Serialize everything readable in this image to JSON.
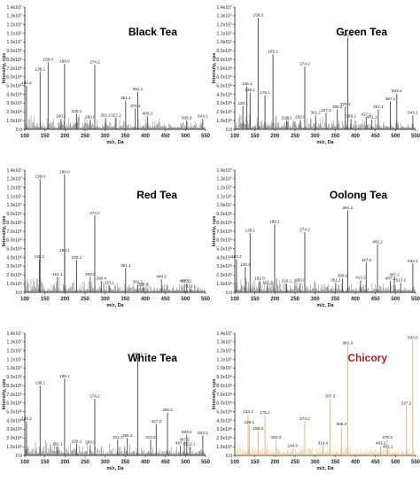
{
  "chart_data": [
    {
      "type": "line",
      "title": "Black Tea",
      "title_color": "#000000",
      "line_color": "#444444",
      "xlabel": "m/z, Da",
      "ylabel": "Intensity, cps",
      "xlim": [
        100,
        550
      ],
      "x_ticks": [
        "100",
        "150",
        "200",
        "250",
        "300",
        "350",
        "400",
        "450",
        "500",
        "550"
      ],
      "ylim": [
        0,
        14000000
      ],
      "y_ticks": [
        "0.0",
        "1.0x10⁶",
        "2.0x10⁶",
        "3.0x10⁶",
        "4.0x10⁶",
        "5.0x10⁶",
        "6.0x10⁶",
        "7.0x10⁶",
        "8.0x10⁶",
        "9.0x10⁶",
        "1.0x10⁷",
        "1.1x10⁷",
        "1.2x10⁷",
        "1.3x10⁷",
        "1.4x10⁷"
      ],
      "peaks": [
        {
          "x": 104.2,
          "y": 5000000,
          "label": "104.2"
        },
        {
          "x": 138.1,
          "y": 6600000,
          "label": "138.1"
        },
        {
          "x": 158.0,
          "y": 7700000,
          "label": "158.0"
        },
        {
          "x": 190.1,
          "y": 1200000,
          "label": "190.1"
        },
        {
          "x": 199.0,
          "y": 7500000,
          "label": "199.0"
        },
        {
          "x": 229.1,
          "y": 1800000,
          "label": "229.1"
        },
        {
          "x": 263.0,
          "y": 1100000,
          "label": "263.0"
        },
        {
          "x": 274.2,
          "y": 7400000,
          "label": "274.2"
        },
        {
          "x": 301.2,
          "y": 1300000,
          "label": "301.2"
        },
        {
          "x": 327.2,
          "y": 1300000,
          "label": "327.2"
        },
        {
          "x": 351.1,
          "y": 3300000,
          "label": "351.1"
        },
        {
          "x": 375.1,
          "y": 2400000,
          "label": "375.1"
        },
        {
          "x": 381.1,
          "y": 4300000,
          "label": "381.1"
        },
        {
          "x": 405.2,
          "y": 1500000,
          "label": "405.2"
        },
        {
          "x": 503.0,
          "y": 1000000,
          "label": "503.0"
        },
        {
          "x": 543.1,
          "y": 1200000,
          "label": "543.1"
        }
      ]
    },
    {
      "type": "line",
      "title": "Green Tea",
      "title_color": "#000000",
      "line_color": "#444444",
      "xlabel": "m/z, Da",
      "ylabel": "Intensity, cps",
      "xlim": [
        100,
        550
      ],
      "x_ticks": [
        "100",
        "150",
        "200",
        "250",
        "300",
        "350",
        "400",
        "450",
        "500",
        "550"
      ],
      "ylim": [
        0,
        14000000
      ],
      "y_ticks": [
        "0.0",
        "1.0x10⁶",
        "2.0x10⁶",
        "3.0x10⁶",
        "4.0x10⁶",
        "5.0x10⁶",
        "6.0x10⁶",
        "7.0x10⁶",
        "8.0x10⁶",
        "9.0x10⁶",
        "1.0x10⁷",
        "1.1x10⁷",
        "1.2x10⁷",
        "1.3x10⁷",
        "1.4x10⁷"
      ],
      "peaks": [
        {
          "x": 120.1,
          "y": 2700000,
          "label": "120.1"
        },
        {
          "x": 130.1,
          "y": 4900000,
          "label": "130.1"
        },
        {
          "x": 138.1,
          "y": 4200000,
          "label": "138.1"
        },
        {
          "x": 158.0,
          "y": 12800000,
          "label": "158.0"
        },
        {
          "x": 175.1,
          "y": 3900000,
          "label": "175.1"
        },
        {
          "x": 195.1,
          "y": 8600000,
          "label": "195.1"
        },
        {
          "x": 229.1,
          "y": 1000000,
          "label": "229.1"
        },
        {
          "x": 263.0,
          "y": 1100000,
          "label": "263.0"
        },
        {
          "x": 274.2,
          "y": 7200000,
          "label": "274.2"
        },
        {
          "x": 301.2,
          "y": 1600000,
          "label": "301.2"
        },
        {
          "x": 327.2,
          "y": 1900000,
          "label": "327.2"
        },
        {
          "x": 355.2,
          "y": 2300000,
          "label": "355.2"
        },
        {
          "x": 375.1,
          "y": 2600000,
          "label": "375.1"
        },
        {
          "x": 381.1,
          "y": 10500000,
          "label": "381.1"
        },
        {
          "x": 389.2,
          "y": 1200000,
          "label": "389.2"
        },
        {
          "x": 427.1,
          "y": 1400000,
          "label": "427.1"
        },
        {
          "x": 441.1,
          "y": 1100000,
          "label": "441.1"
        },
        {
          "x": 457.1,
          "y": 2300000,
          "label": "457.1"
        },
        {
          "x": 487.1,
          "y": 3200000,
          "label": "487.1"
        },
        {
          "x": 503.2,
          "y": 4100000,
          "label": "503.2"
        },
        {
          "x": 543.1,
          "y": 1600000,
          "label": "543.1"
        }
      ]
    },
    {
      "type": "line",
      "title": "Red Tea",
      "title_color": "#000000",
      "line_color": "#444444",
      "xlabel": "m/z, Da",
      "ylabel": "Intensity, cps",
      "xlim": [
        100,
        550
      ],
      "x_ticks": [
        "100",
        "150",
        "200",
        "250",
        "300",
        "350",
        "400",
        "450",
        "500",
        "550"
      ],
      "ylim": [
        0,
        14000000
      ],
      "y_ticks": [
        "0.0",
        "1.0x10⁶",
        "2.0x10⁶",
        "3.0x10⁶",
        "4.0x10⁶",
        "5.0x10⁶",
        "6.0x10⁶",
        "7.0x10⁶",
        "8.0x10⁶",
        "9.0x10⁶",
        "1.0x10⁷",
        "1.1x10⁷",
        "1.2x10⁷",
        "1.3x10⁷",
        "1.4x10⁷"
      ],
      "peaks": [
        {
          "x": 136.1,
          "y": 3800000,
          "label": "136.1"
        },
        {
          "x": 138.0,
          "y": 13000000,
          "label": "138.0"
        },
        {
          "x": 181.1,
          "y": 1800000,
          "label": "181.1"
        },
        {
          "x": 199.0,
          "y": 13500000,
          "label": "199.0"
        },
        {
          "x": 199.1,
          "y": 4500000,
          "label": "199.1"
        },
        {
          "x": 229.1,
          "y": 3700000,
          "label": "229.1"
        },
        {
          "x": 263.0,
          "y": 1800000,
          "label": "263.0"
        },
        {
          "x": 274.2,
          "y": 8800000,
          "label": "274.2"
        },
        {
          "x": 290.4,
          "y": 1300000,
          "label": "290.4"
        },
        {
          "x": 310.1,
          "y": 800000,
          "label": "310.1"
        },
        {
          "x": 351.1,
          "y": 2800000,
          "label": "351.1"
        },
        {
          "x": 381.1,
          "y": 900000,
          "label": "381.1"
        },
        {
          "x": 395.0,
          "y": 600000,
          "label": "395.0"
        },
        {
          "x": 440.2,
          "y": 1500000,
          "label": "440.2"
        },
        {
          "x": 497.2,
          "y": 1000000,
          "label": "497.2"
        },
        {
          "x": 503.2,
          "y": 1000000,
          "label": "503.2"
        },
        {
          "x": 513.1,
          "y": 400000,
          "label": "513.1"
        }
      ]
    },
    {
      "type": "line",
      "title": "Oolong Tea",
      "title_color": "#000000",
      "line_color": "#444444",
      "xlabel": "m/z, Da",
      "ylabel": "Intensity, cps",
      "xlim": [
        100,
        550
      ],
      "x_ticks": [
        "100",
        "150",
        "200",
        "250",
        "300",
        "350",
        "400",
        "450",
        "500",
        "550"
      ],
      "ylim": [
        0,
        14000000
      ],
      "y_ticks": [
        "0.0",
        "1.0x10⁶",
        "2.0x10⁶",
        "3.0x10⁶",
        "4.0x10⁶",
        "5.0x10⁶",
        "6.0x10⁶",
        "7.0x10⁶",
        "8.0x10⁶",
        "9.0x10⁶",
        "1.0x10⁷",
        "1.1x10⁷",
        "1.2x10⁷",
        "1.3x10⁷",
        "1.4x10⁷"
      ],
      "peaks": [
        {
          "x": 104.2,
          "y": 3800000,
          "label": "104.2"
        },
        {
          "x": 126.1,
          "y": 2900000,
          "label": "126.1"
        },
        {
          "x": 138.1,
          "y": 6800000,
          "label": "138.1"
        },
        {
          "x": 162.0,
          "y": 1300000,
          "label": "162.0"
        },
        {
          "x": 181.1,
          "y": 800000,
          "label": "181.1"
        },
        {
          "x": 199.1,
          "y": 7800000,
          "label": "199.1"
        },
        {
          "x": 229.1,
          "y": 1000000,
          "label": "229.1"
        },
        {
          "x": 263.0,
          "y": 1100000,
          "label": "263.0"
        },
        {
          "x": 274.2,
          "y": 6900000,
          "label": "274.2"
        },
        {
          "x": 351.1,
          "y": 1100000,
          "label": "351.1"
        },
        {
          "x": 368.2,
          "y": 1600000,
          "label": "368.2"
        },
        {
          "x": 381.1,
          "y": 9400000,
          "label": "381.1"
        },
        {
          "x": 413.2,
          "y": 1400000,
          "label": "413.2"
        },
        {
          "x": 427.2,
          "y": 3400000,
          "label": "427.2"
        },
        {
          "x": 455.2,
          "y": 5500000,
          "label": "455.2"
        },
        {
          "x": 487.2,
          "y": 1300000,
          "label": "487.2"
        },
        {
          "x": 497.2,
          "y": 1700000,
          "label": "497.2"
        },
        {
          "x": 513.1,
          "y": 1100000,
          "label": "513.1"
        },
        {
          "x": 543.1,
          "y": 3300000,
          "label": "543.1"
        }
      ]
    },
    {
      "type": "line",
      "title": "White Tea",
      "title_color": "#000000",
      "line_color": "#444444",
      "xlabel": "m/z, Da",
      "ylabel": "Intensity, cps",
      "xlim": [
        100,
        550
      ],
      "x_ticks": [
        "100",
        "150",
        "200",
        "250",
        "300",
        "350",
        "400",
        "450",
        "500",
        "550"
      ],
      "ylim": [
        0,
        14000000
      ],
      "y_ticks": [
        "0.0",
        "1.0x10⁶",
        "2.0x10⁶",
        "3.0x10⁶",
        "4.0x10⁶",
        "5.0x10⁶",
        "6.0x10⁶",
        "7.0x10⁶",
        "8.0x10⁶",
        "9.0x10⁶",
        "1.0x10⁷",
        "1.1x10⁷",
        "1.2x10⁷",
        "1.3x10⁷",
        "1.4x10⁷"
      ],
      "peaks": [
        {
          "x": 104.2,
          "y": 3900000,
          "label": "104.2"
        },
        {
          "x": 138.1,
          "y": 8000000,
          "label": "138.1"
        },
        {
          "x": 181.1,
          "y": 1000000,
          "label": "181.1"
        },
        {
          "x": 199.1,
          "y": 8800000,
          "label": "199.1"
        },
        {
          "x": 229.1,
          "y": 1300000,
          "label": "229.1"
        },
        {
          "x": 263.0,
          "y": 1200000,
          "label": "263.0"
        },
        {
          "x": 274.2,
          "y": 6500000,
          "label": "274.2"
        },
        {
          "x": 331.1,
          "y": 1800000,
          "label": "331.1"
        },
        {
          "x": 355.2,
          "y": 2000000,
          "label": "355.2"
        },
        {
          "x": 381.1,
          "y": 11300000,
          "label": "381.1"
        },
        {
          "x": 413.2,
          "y": 1800000,
          "label": "413.2"
        },
        {
          "x": 427.2,
          "y": 3600000,
          "label": "427.2"
        },
        {
          "x": 455.2,
          "y": 4900000,
          "label": "455.2"
        },
        {
          "x": 487.2,
          "y": 1100000,
          "label": "487.2"
        },
        {
          "x": 497.2,
          "y": 1500000,
          "label": "497.2"
        },
        {
          "x": 503.2,
          "y": 2400000,
          "label": "503.2"
        },
        {
          "x": 512.1,
          "y": 1000000,
          "label": "512.1"
        },
        {
          "x": 543.1,
          "y": 2300000,
          "label": "543.1"
        }
      ]
    },
    {
      "type": "line",
      "title": "Chicory",
      "title_color": "#b22222",
      "line_color": "#e3b171",
      "xlabel": "m/z, Da",
      "ylabel": "Intensity, cps",
      "xlim": [
        100,
        550
      ],
      "x_ticks": [
        "100",
        "150",
        "200",
        "250",
        "300",
        "350",
        "400",
        "450",
        "500",
        "550"
      ],
      "ylim": [
        0,
        14000000
      ],
      "y_ticks": [
        "0.0",
        "1.0x10⁶",
        "2.0x10⁶",
        "3.0x10⁶",
        "4.0x10⁶",
        "5.0x10⁶",
        "6.0x10⁶",
        "7.0x10⁶",
        "8.0x10⁶",
        "9.0x10⁶",
        "1.0x10⁷",
        "1.1x10⁷",
        "1.2x10⁷",
        "1.3x10⁷",
        "1.4x10⁷"
      ],
      "peaks": [
        {
          "x": 133.1,
          "y": 4700000,
          "label": "133.1"
        },
        {
          "x": 136.1,
          "y": 3500000,
          "label": "136.1"
        },
        {
          "x": 158.0,
          "y": 2800000,
          "label": "158.0"
        },
        {
          "x": 175.1,
          "y": 4600000,
          "label": "175.1"
        },
        {
          "x": 203.0,
          "y": 1800000,
          "label": "203.0"
        },
        {
          "x": 244.0,
          "y": 800000,
          "label": "244.0"
        },
        {
          "x": 274.2,
          "y": 3900000,
          "label": "274.2"
        },
        {
          "x": 319.4,
          "y": 1100000,
          "label": "319.4"
        },
        {
          "x": 337.3,
          "y": 6500000,
          "label": "337.3"
        },
        {
          "x": 365.3,
          "y": 3300000,
          "label": "365.3"
        },
        {
          "x": 381.0,
          "y": 12600000,
          "label": "381.0"
        },
        {
          "x": 463.2,
          "y": 1100000,
          "label": "463.2"
        },
        {
          "x": 481.2,
          "y": 700000,
          "label": "481.2"
        },
        {
          "x": 479.3,
          "y": 1800000,
          "label": "479.3"
        },
        {
          "x": 527.2,
          "y": 5700000,
          "label": "527.2"
        },
        {
          "x": 543.0,
          "y": 13200000,
          "label": "543.0"
        }
      ]
    }
  ]
}
